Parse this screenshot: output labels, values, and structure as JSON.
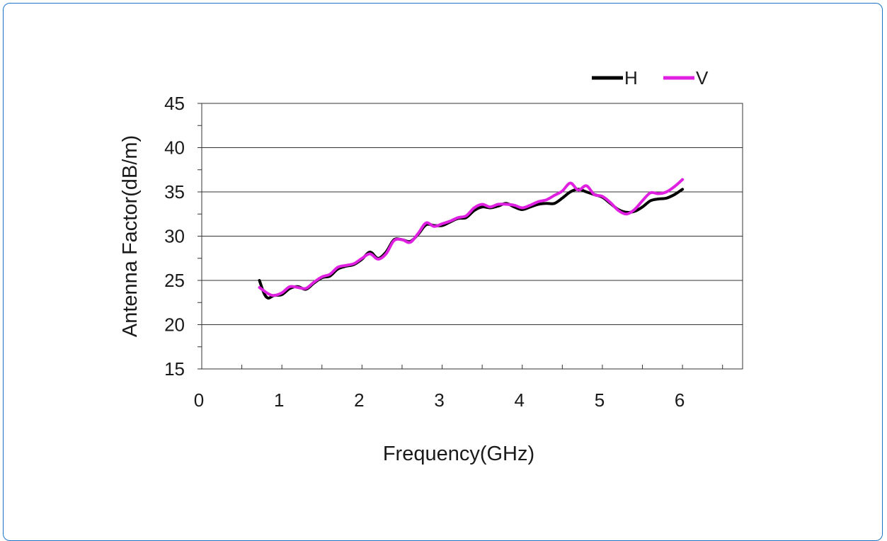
{
  "chart_data": {
    "type": "line",
    "xlabel": "Frequency(GHz)",
    "ylabel": "Antenna Factor(dB/m)",
    "xlim": [
      0,
      6.75
    ],
    "ylim": [
      15,
      45
    ],
    "x_ticks": [
      0,
      1,
      2,
      3,
      4,
      5,
      6
    ],
    "y_ticks": [
      15,
      20,
      25,
      30,
      35,
      40,
      45
    ],
    "grid": "horizontal",
    "legend_position": "top-right",
    "series": [
      {
        "name": "H",
        "color": "#000000",
        "x": [
          0.72,
          0.78,
          0.83,
          0.9,
          1.0,
          1.1,
          1.2,
          1.3,
          1.4,
          1.5,
          1.6,
          1.7,
          1.8,
          1.9,
          2.0,
          2.1,
          2.2,
          2.3,
          2.4,
          2.5,
          2.6,
          2.7,
          2.8,
          2.9,
          3.0,
          3.1,
          3.2,
          3.3,
          3.4,
          3.5,
          3.6,
          3.7,
          3.8,
          3.9,
          4.0,
          4.1,
          4.2,
          4.3,
          4.4,
          4.5,
          4.6,
          4.7,
          4.8,
          4.9,
          5.0,
          5.1,
          5.2,
          5.3,
          5.4,
          5.5,
          5.6,
          5.7,
          5.8,
          5.9,
          6.0
        ],
        "y": [
          25.0,
          23.5,
          23.0,
          23.3,
          23.4,
          24.1,
          24.3,
          24.0,
          24.7,
          25.3,
          25.5,
          26.3,
          26.6,
          26.8,
          27.4,
          28.2,
          27.5,
          28.2,
          29.6,
          29.6,
          29.4,
          30.2,
          31.3,
          31.2,
          31.2,
          31.6,
          32.0,
          32.1,
          32.9,
          33.3,
          33.2,
          33.4,
          33.7,
          33.3,
          33.0,
          33.3,
          33.6,
          33.7,
          33.7,
          34.3,
          35.0,
          35.3,
          35.0,
          34.7,
          34.4,
          33.7,
          33.0,
          32.7,
          32.8,
          33.3,
          34.0,
          34.2,
          34.3,
          34.7,
          35.3
        ]
      },
      {
        "name": "V",
        "color": "#e020e0",
        "x": [
          0.72,
          0.78,
          0.83,
          0.9,
          1.0,
          1.1,
          1.2,
          1.3,
          1.4,
          1.5,
          1.6,
          1.7,
          1.8,
          1.9,
          2.0,
          2.1,
          2.2,
          2.3,
          2.4,
          2.5,
          2.6,
          2.7,
          2.8,
          2.9,
          3.0,
          3.1,
          3.2,
          3.3,
          3.4,
          3.5,
          3.6,
          3.7,
          3.8,
          3.9,
          4.0,
          4.1,
          4.2,
          4.3,
          4.4,
          4.5,
          4.6,
          4.7,
          4.8,
          4.9,
          5.0,
          5.1,
          5.2,
          5.3,
          5.4,
          5.5,
          5.6,
          5.7,
          5.8,
          5.9,
          6.0
        ],
        "y": [
          24.2,
          23.8,
          23.5,
          23.3,
          23.6,
          24.3,
          24.2,
          24.1,
          24.8,
          25.4,
          25.7,
          26.5,
          26.7,
          26.9,
          27.5,
          28.0,
          27.4,
          28.0,
          29.5,
          29.6,
          29.3,
          30.3,
          31.5,
          31.1,
          31.4,
          31.7,
          32.1,
          32.3,
          33.2,
          33.6,
          33.3,
          33.6,
          33.6,
          33.5,
          33.2,
          33.5,
          33.9,
          34.1,
          34.6,
          35.1,
          36.0,
          35.2,
          35.7,
          34.7,
          34.5,
          33.8,
          32.9,
          32.5,
          33.0,
          34.0,
          34.9,
          34.8,
          35.0,
          35.6,
          36.4
        ]
      }
    ]
  }
}
